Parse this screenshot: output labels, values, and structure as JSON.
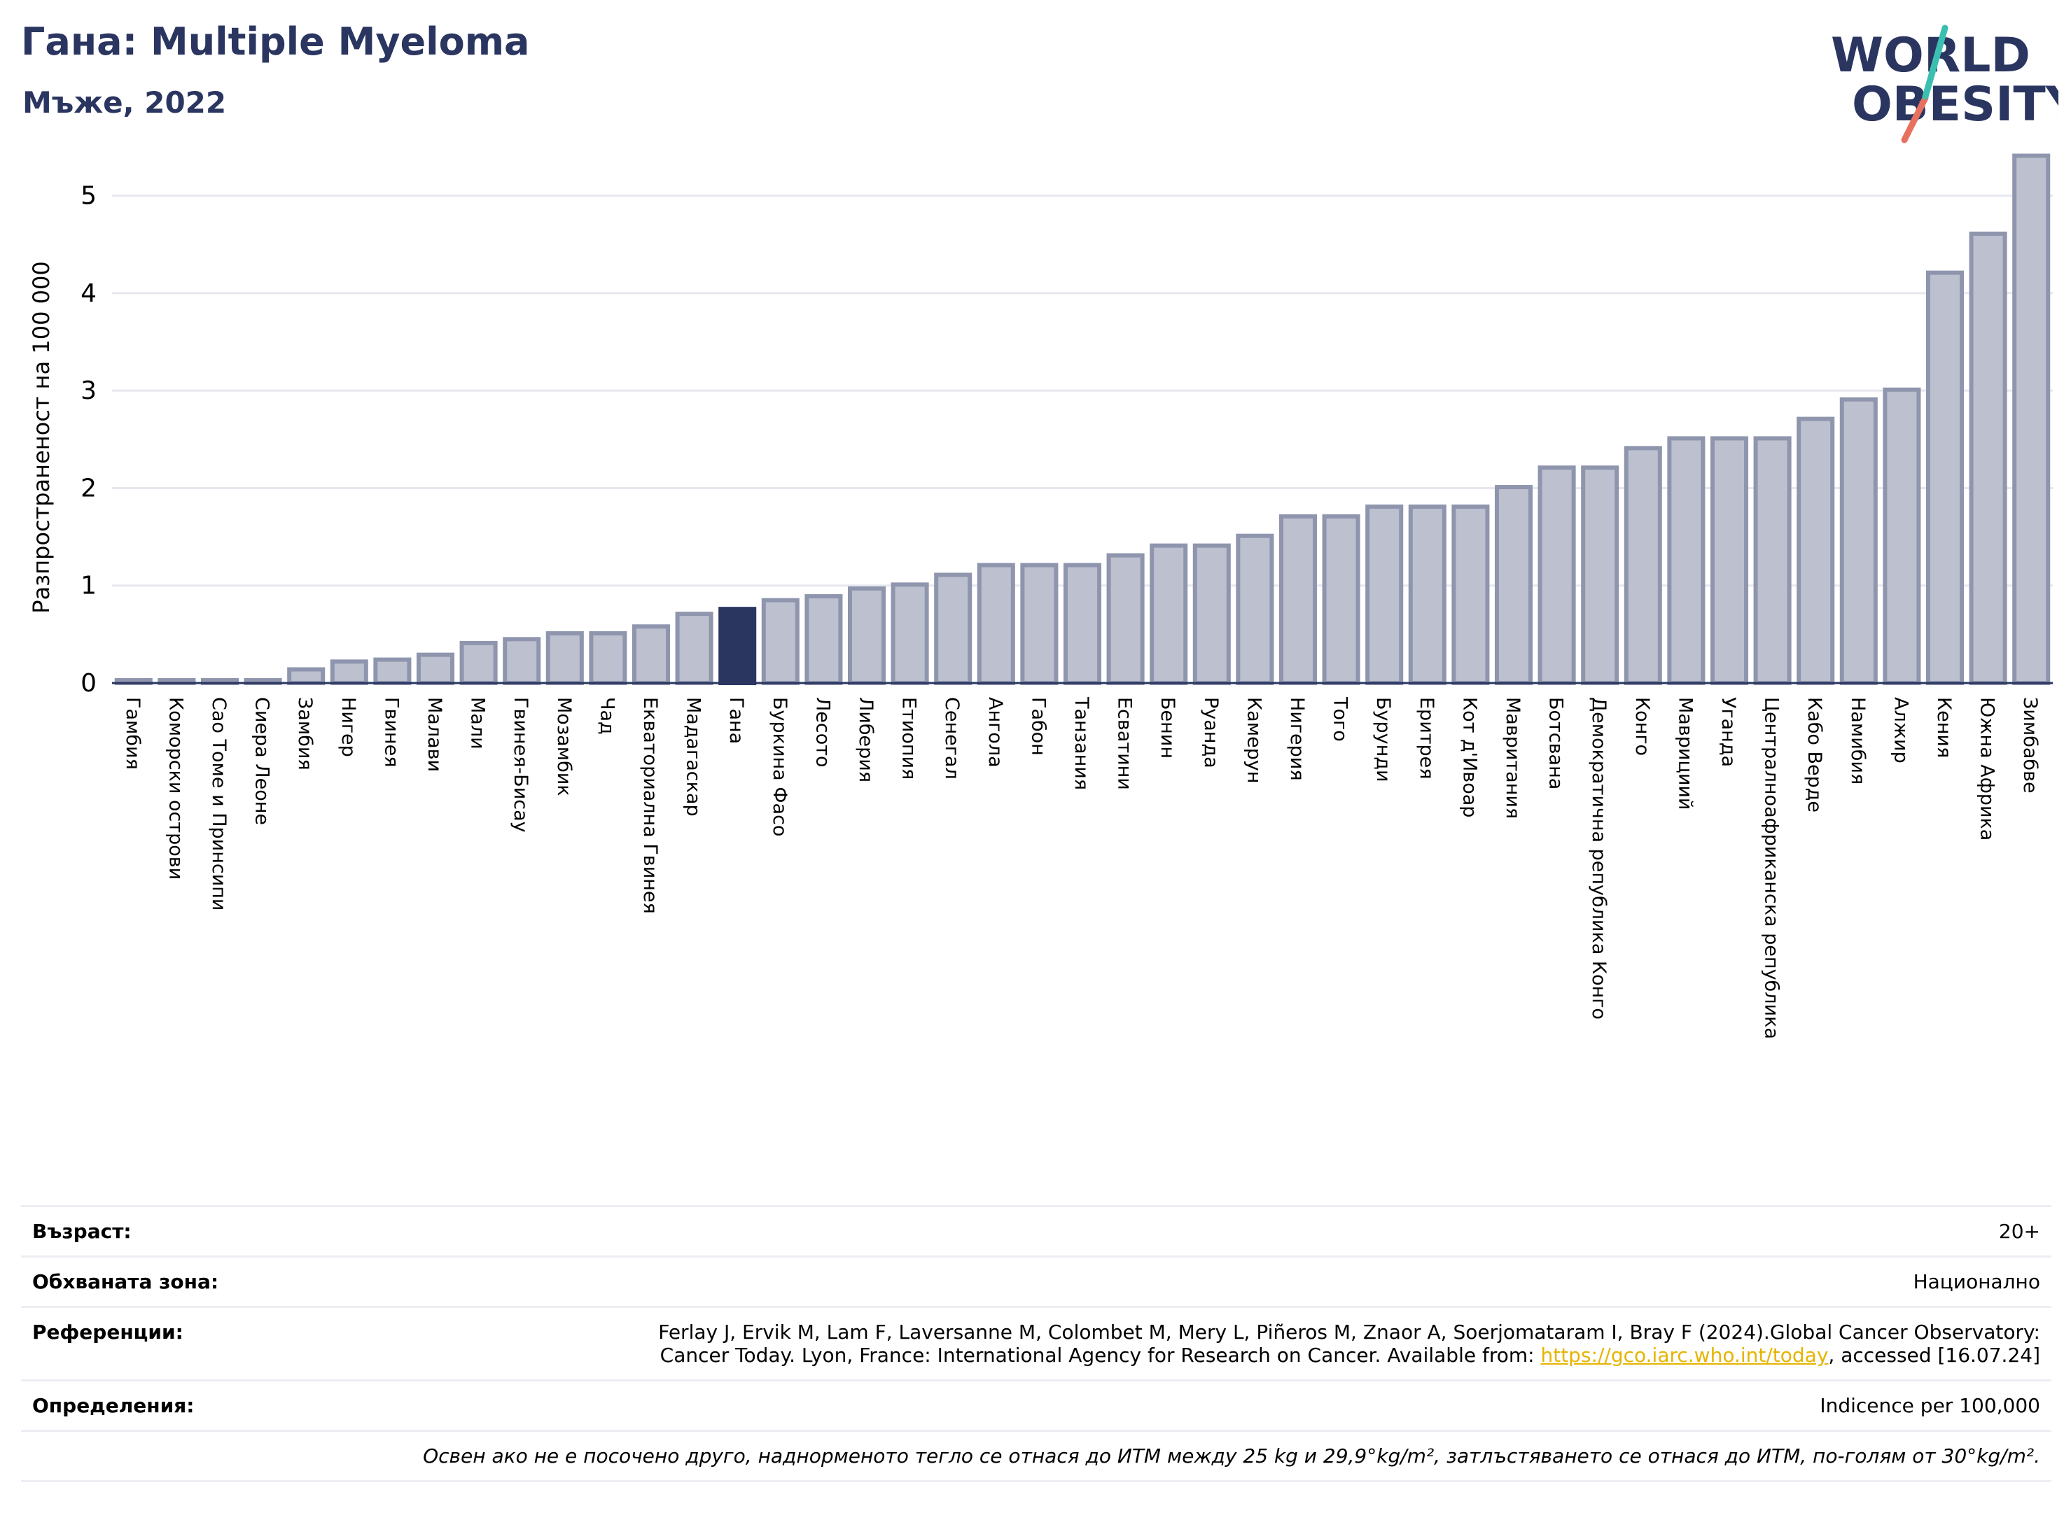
{
  "header": {
    "title": "Гана: Multiple Myeloma",
    "subtitle": "Мъже, 2022"
  },
  "logo": {
    "line1": "WORLD",
    "line2": "OBESITY"
  },
  "chart_data": {
    "type": "bar",
    "title": "Гана: Multiple Myeloma",
    "subtitle": "Мъже, 2022",
    "ylabel": "Разпространеност  на 100 000",
    "xlabel": "",
    "ylim": [
      0,
      5.5
    ],
    "yticks": [
      0,
      1,
      2,
      3,
      4,
      5
    ],
    "grid": true,
    "highlight": "Гана",
    "colors": {
      "bar": "#bcc0cf",
      "bar_edge": "#8e95ad",
      "highlight": "#2a3560"
    },
    "categories": [
      "Гамбия",
      "Коморски острови",
      "Сао Томе и Принсипи",
      "Сиера Леоне",
      "Замбия",
      "Нигер",
      "Гвинея",
      "Малави",
      "Мали",
      "Гвинея-Бисау",
      "Мозамбик",
      "Чад",
      "Екваториална Гвинея",
      "Мадагаскар",
      "Гана",
      "Буркина Фасо",
      "Лесото",
      "Либерия",
      "Етиопия",
      "Сенегал",
      "Ангола",
      "Габон",
      "Танзания",
      "Есватини",
      "Бенин",
      "Руанда",
      "Камерун",
      "Нигерия",
      "Того",
      "Бурунди",
      "Еритрея",
      "Кот д'Ивоар",
      "Мавритания",
      "Ботсвана",
      "Демократична република Конго",
      "Конго",
      "Маврициий",
      "Уганда",
      "Централноафриканска република",
      "Кабо Верде",
      "Намибия",
      "Алжир",
      "Кения",
      "Южна Африка",
      "Зимбабве"
    ],
    "values": [
      0.01,
      0.01,
      0.01,
      0.01,
      0.14,
      0.22,
      0.24,
      0.29,
      0.41,
      0.45,
      0.51,
      0.51,
      0.58,
      0.71,
      0.76,
      0.85,
      0.89,
      0.97,
      1.01,
      1.11,
      1.21,
      1.21,
      1.21,
      1.31,
      1.41,
      1.41,
      1.51,
      1.71,
      1.71,
      1.81,
      1.81,
      1.81,
      2.01,
      2.21,
      2.21,
      2.41,
      2.51,
      2.51,
      2.51,
      2.71,
      2.91,
      3.01,
      4.21,
      4.61,
      5.41
    ]
  },
  "info": {
    "age_label": "Възраст:",
    "age_value": "20+",
    "coverage_label": "Обхваната зона:",
    "coverage_value": "Национално",
    "refs_label": "Референции:",
    "refs_line1": "Ferlay J, Ervik M, Lam F, Laversanne M, Colombet M, Mery L, Piñeros M, Znaor A, Soerjomataram I, Bray F (2024).Global Cancer Observatory:",
    "refs_line2_pre": "Cancer Today. Lyon, France: International Agency for Research on Cancer. Available from: ",
    "refs_link": "https://gco.iarc.who.int/today",
    "refs_line2_post": ", accessed [16.07.24]",
    "defs_label": "Определения:",
    "defs_value": "Indicence per 100,000",
    "note": "Освен ако не е посочено друго, наднорменото тегло се отнася до ИТМ между 25 kg и 29,9°kg/m², затлъстяването се отнася до ИТМ, по-голям от 30°kg/m²."
  }
}
